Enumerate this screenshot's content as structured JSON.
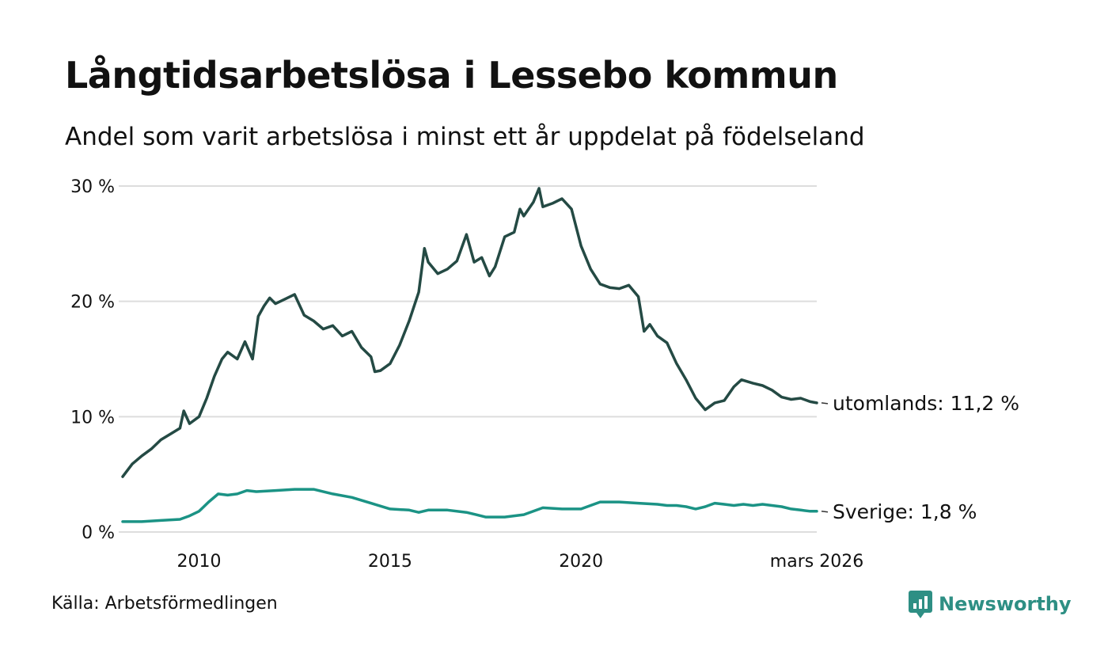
{
  "title": "Långtidsarbetslösa i Lessebo kommun",
  "subtitle": "Andel som varit arbetslösa i minst ett år uppdelat på födelseland",
  "source": "Källa: Arbetsförmedlingen",
  "brand": "Newsworthy",
  "colors": {
    "utomlands": "#244a44",
    "sverige": "#1b9385",
    "grid": "#dddddd",
    "brand": "#2e8f84"
  },
  "chart_data": {
    "type": "line",
    "x_unit": "year (decimal)",
    "xlim": [
      2008.0,
      2026.17
    ],
    "ylim": [
      0,
      30
    ],
    "yticks": [
      0,
      10,
      20,
      30
    ],
    "ytick_labels": [
      "0 %",
      "10 %",
      "20 %",
      "30 %"
    ],
    "xticks": [
      2010,
      2015,
      2020,
      2026.17
    ],
    "xtick_labels": [
      "2010",
      "2015",
      "2020",
      "mars 2026"
    ],
    "grid": "horizontal",
    "series": [
      {
        "name": "utomlands",
        "end_label": "utomlands: 11,2 %",
        "points": [
          [
            2008.0,
            4.8
          ],
          [
            2008.25,
            5.9
          ],
          [
            2008.5,
            6.6
          ],
          [
            2008.75,
            7.2
          ],
          [
            2009.0,
            8.0
          ],
          [
            2009.25,
            8.5
          ],
          [
            2009.5,
            9.0
          ],
          [
            2009.6,
            10.5
          ],
          [
            2009.75,
            9.4
          ],
          [
            2010.0,
            10.0
          ],
          [
            2010.2,
            11.6
          ],
          [
            2010.4,
            13.5
          ],
          [
            2010.6,
            15.0
          ],
          [
            2010.75,
            15.6
          ],
          [
            2011.0,
            15.0
          ],
          [
            2011.2,
            16.5
          ],
          [
            2011.4,
            15.0
          ],
          [
            2011.55,
            18.7
          ],
          [
            2011.7,
            19.6
          ],
          [
            2011.85,
            20.3
          ],
          [
            2012.0,
            19.8
          ],
          [
            2012.25,
            20.2
          ],
          [
            2012.5,
            20.6
          ],
          [
            2012.75,
            18.8
          ],
          [
            2013.0,
            18.3
          ],
          [
            2013.25,
            17.6
          ],
          [
            2013.5,
            17.9
          ],
          [
            2013.75,
            17.0
          ],
          [
            2014.0,
            17.4
          ],
          [
            2014.25,
            16.0
          ],
          [
            2014.5,
            15.2
          ],
          [
            2014.6,
            13.9
          ],
          [
            2014.75,
            14.0
          ],
          [
            2015.0,
            14.6
          ],
          [
            2015.25,
            16.2
          ],
          [
            2015.5,
            18.3
          ],
          [
            2015.75,
            20.8
          ],
          [
            2015.9,
            24.6
          ],
          [
            2016.0,
            23.4
          ],
          [
            2016.25,
            22.4
          ],
          [
            2016.5,
            22.8
          ],
          [
            2016.75,
            23.5
          ],
          [
            2017.0,
            25.8
          ],
          [
            2017.2,
            23.4
          ],
          [
            2017.4,
            23.8
          ],
          [
            2017.6,
            22.2
          ],
          [
            2017.75,
            23.0
          ],
          [
            2018.0,
            25.6
          ],
          [
            2018.25,
            26.0
          ],
          [
            2018.4,
            28.0
          ],
          [
            2018.5,
            27.4
          ],
          [
            2018.75,
            28.6
          ],
          [
            2018.9,
            29.8
          ],
          [
            2019.0,
            28.2
          ],
          [
            2019.25,
            28.5
          ],
          [
            2019.5,
            28.9
          ],
          [
            2019.75,
            28.0
          ],
          [
            2020.0,
            24.8
          ],
          [
            2020.25,
            22.8
          ],
          [
            2020.5,
            21.5
          ],
          [
            2020.75,
            21.2
          ],
          [
            2021.0,
            21.1
          ],
          [
            2021.25,
            21.4
          ],
          [
            2021.5,
            20.4
          ],
          [
            2021.65,
            17.4
          ],
          [
            2021.8,
            18.0
          ],
          [
            2022.0,
            17.0
          ],
          [
            2022.25,
            16.4
          ],
          [
            2022.5,
            14.6
          ],
          [
            2022.75,
            13.2
          ],
          [
            2023.0,
            11.6
          ],
          [
            2023.25,
            10.6
          ],
          [
            2023.5,
            11.2
          ],
          [
            2023.75,
            11.4
          ],
          [
            2024.0,
            12.6
          ],
          [
            2024.2,
            13.2
          ],
          [
            2024.5,
            12.9
          ],
          [
            2024.75,
            12.7
          ],
          [
            2025.0,
            12.3
          ],
          [
            2025.25,
            11.7
          ],
          [
            2025.5,
            11.5
          ],
          [
            2025.75,
            11.6
          ],
          [
            2026.0,
            11.3
          ],
          [
            2026.17,
            11.2
          ]
        ]
      },
      {
        "name": "Sverige",
        "end_label": "Sverige:  1,8 %",
        "points": [
          [
            2008.0,
            0.9
          ],
          [
            2008.5,
            0.9
          ],
          [
            2009.0,
            1.0
          ],
          [
            2009.5,
            1.1
          ],
          [
            2009.75,
            1.4
          ],
          [
            2010.0,
            1.8
          ],
          [
            2010.25,
            2.6
          ],
          [
            2010.5,
            3.3
          ],
          [
            2010.75,
            3.2
          ],
          [
            2011.0,
            3.3
          ],
          [
            2011.25,
            3.6
          ],
          [
            2011.5,
            3.5
          ],
          [
            2012.0,
            3.6
          ],
          [
            2012.5,
            3.7
          ],
          [
            2013.0,
            3.7
          ],
          [
            2013.5,
            3.3
          ],
          [
            2014.0,
            3.0
          ],
          [
            2014.5,
            2.5
          ],
          [
            2015.0,
            2.0
          ],
          [
            2015.5,
            1.9
          ],
          [
            2015.75,
            1.7
          ],
          [
            2016.0,
            1.9
          ],
          [
            2016.5,
            1.9
          ],
          [
            2017.0,
            1.7
          ],
          [
            2017.25,
            1.5
          ],
          [
            2017.5,
            1.3
          ],
          [
            2018.0,
            1.3
          ],
          [
            2018.5,
            1.5
          ],
          [
            2019.0,
            2.1
          ],
          [
            2019.5,
            2.0
          ],
          [
            2020.0,
            2.0
          ],
          [
            2020.5,
            2.6
          ],
          [
            2020.75,
            2.6
          ],
          [
            2021.0,
            2.6
          ],
          [
            2021.5,
            2.5
          ],
          [
            2022.0,
            2.4
          ],
          [
            2022.25,
            2.3
          ],
          [
            2022.5,
            2.3
          ],
          [
            2022.75,
            2.2
          ],
          [
            2023.0,
            2.0
          ],
          [
            2023.25,
            2.2
          ],
          [
            2023.5,
            2.5
          ],
          [
            2023.75,
            2.4
          ],
          [
            2024.0,
            2.3
          ],
          [
            2024.25,
            2.4
          ],
          [
            2024.5,
            2.3
          ],
          [
            2024.75,
            2.4
          ],
          [
            2025.0,
            2.3
          ],
          [
            2025.25,
            2.2
          ],
          [
            2025.5,
            2.0
          ],
          [
            2025.75,
            1.9
          ],
          [
            2026.0,
            1.8
          ],
          [
            2026.17,
            1.8
          ]
        ]
      }
    ]
  }
}
